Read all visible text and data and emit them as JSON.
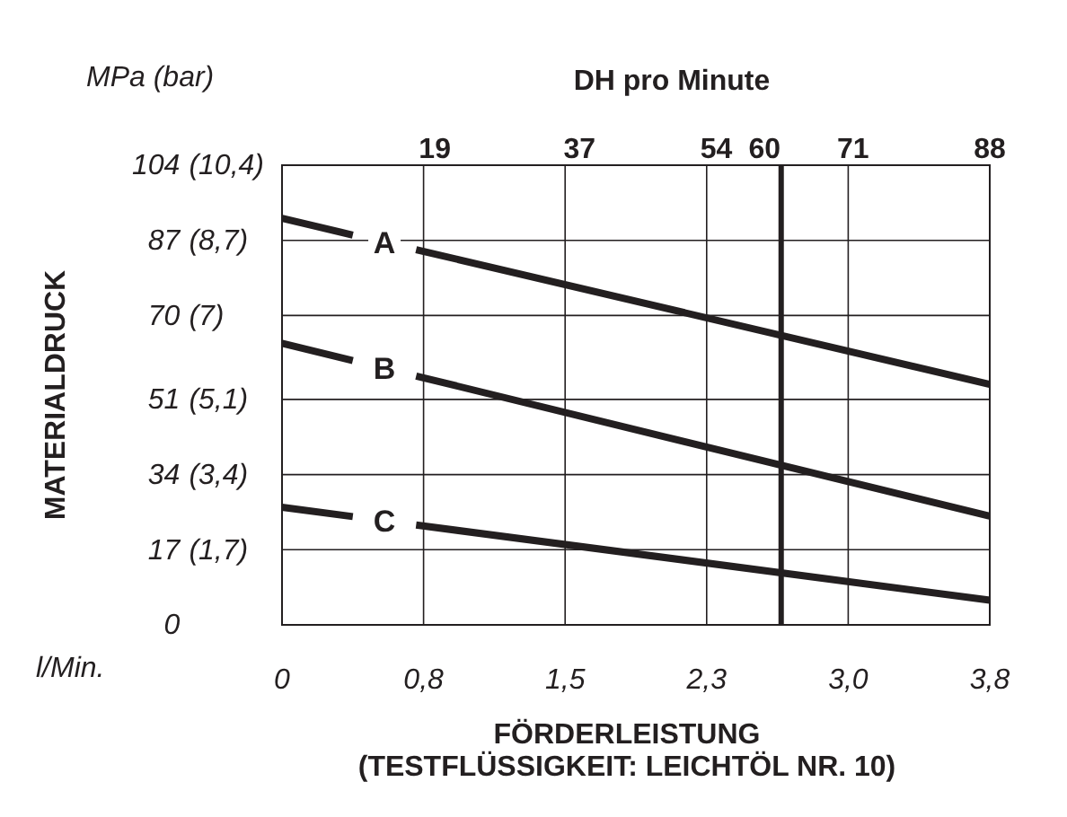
{
  "chart_data": {
    "type": "line",
    "xlabel": "FÖRDERLEISTUNG\n(TESTFLÜSSIGKEIT: LEICHTÖL NR. 10)",
    "ylabel": "MATERIALDRUCK",
    "x2label": "DH pro Minute",
    "annotations": [
      "MPa (bar)",
      "l/Min."
    ],
    "xlim": [
      0,
      3.8
    ],
    "xticks": [
      0,
      {
        "value": 0.76,
        "label": "0,8"
      },
      {
        "value": 1.52,
        "label": "1,5"
      },
      {
        "value": 2.28,
        "label": "2,3"
      },
      {
        "value": 3.04,
        "label": "3,0"
      },
      {
        "value": 3.8,
        "label": "3,8"
      }
    ],
    "x2lim": [
      0,
      88
    ],
    "x2ticks": [
      19,
      37,
      54,
      60,
      71,
      88
    ],
    "ylim": [
      0,
      104
    ],
    "yticks": [
      0,
      17,
      34,
      51,
      70,
      87,
      104
    ],
    "y2lim": [
      0,
      10.4
    ],
    "y2ticks": [
      {
        "value": 1.7,
        "label": "(1,7)"
      },
      {
        "value": 3.4,
        "label": "(3,4)"
      },
      {
        "value": 5.1,
        "label": "(5,1)"
      },
      {
        "value": 7,
        "label": "(7)"
      },
      {
        "value": 8.7,
        "label": "(8,7)"
      },
      {
        "value": 10.4,
        "label": "(10,4)"
      }
    ],
    "grid": true,
    "legend": false,
    "line_style": "solid",
    "marker": "none",
    "ref_lines": [
      {
        "axis": "x",
        "value": 2.68,
        "color": "#231f20"
      }
    ],
    "series": [
      {
        "name": "A",
        "color": "#231f20",
        "x": [
          0,
          0.38,
          0.72,
          3.8
        ],
        "values": [
          92,
          88.2,
          84.9,
          54.4
        ]
      },
      {
        "name": "B",
        "color": "#231f20",
        "x": [
          0,
          0.38,
          0.72,
          3.8
        ],
        "values": [
          63.7,
          59.8,
          56.3,
          24.6
        ]
      },
      {
        "name": "C",
        "color": "#231f20",
        "x": [
          0,
          0.38,
          0.72,
          3.8
        ],
        "values": [
          26.6,
          24.5,
          22.6,
          5.6
        ]
      }
    ]
  }
}
